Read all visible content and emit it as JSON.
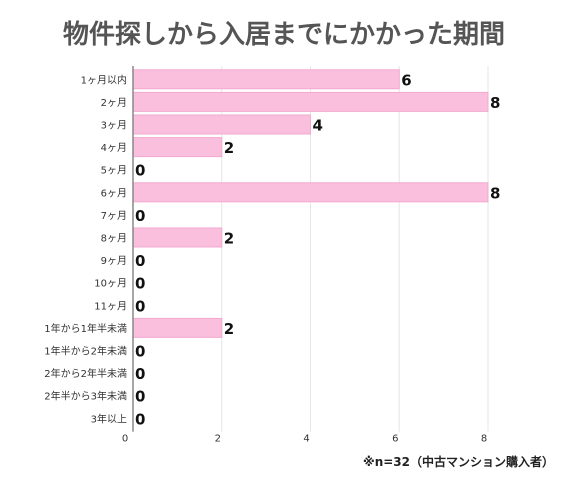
{
  "title": "物件探しから入居までにかかった期間",
  "note": "※n=32（中古マンション購入者）",
  "chart_data": {
    "type": "bar",
    "orientation": "horizontal",
    "categories": [
      "1ヶ月以内",
      "2ヶ月",
      "3ヶ月",
      "4ヶ月",
      "5ヶ月",
      "6ヶ月",
      "7ヶ月",
      "8ヶ月",
      "9ヶ月",
      "10ヶ月",
      "11ヶ月",
      "1年から1年半未満",
      "1年半から2年未満",
      "2年から2年半未満",
      "2年半から3年未満",
      "3年以上"
    ],
    "values": [
      6,
      8,
      4,
      2,
      0,
      8,
      0,
      2,
      0,
      0,
      0,
      2,
      0,
      0,
      0,
      0
    ],
    "xticks": [
      0,
      2,
      4,
      6,
      8
    ],
    "xlim": [
      0,
      8
    ],
    "grid": true,
    "data_labels": true,
    "colors": {
      "bar": "#f9bfdd",
      "bar_edge": "#f3a9cf",
      "grid": "#e6e6e6",
      "axis": "#888888"
    }
  }
}
